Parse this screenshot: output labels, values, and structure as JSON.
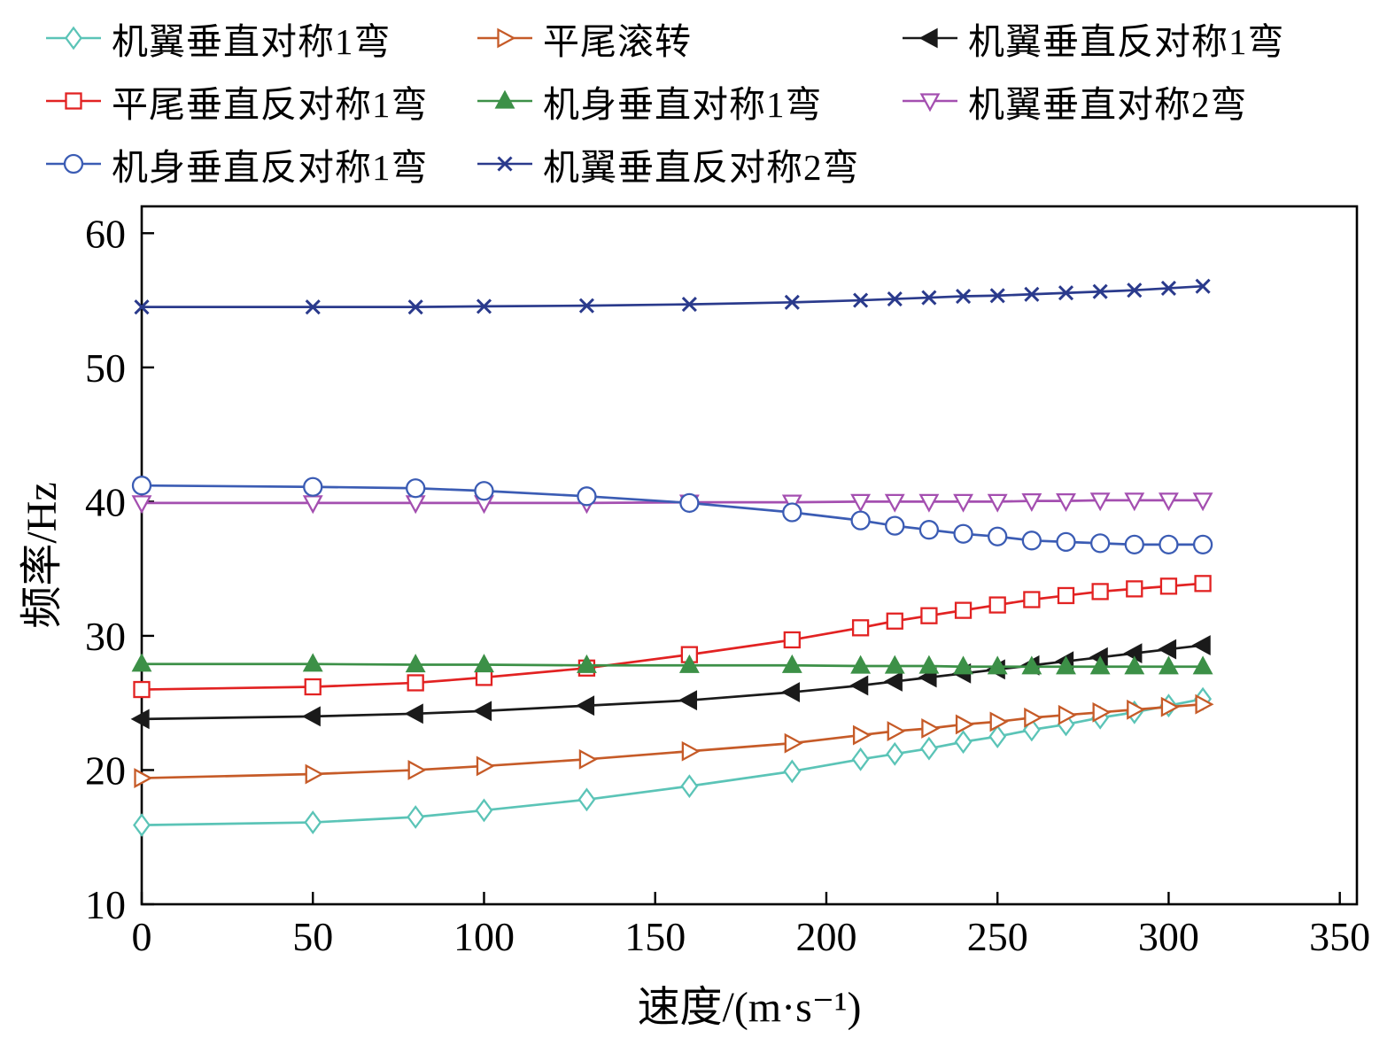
{
  "chart_data": {
    "type": "line",
    "title": "",
    "xlabel": "速度/(m·s⁻¹)",
    "ylabel": "频率/Hz",
    "xlim": [
      0,
      355
    ],
    "ylim": [
      10,
      62
    ],
    "xticks": [
      0,
      50,
      100,
      150,
      200,
      250,
      300,
      350
    ],
    "yticks": [
      10,
      20,
      30,
      40,
      50,
      60
    ],
    "grid": false,
    "legend_position": "top-outside",
    "axis_color": "#000000",
    "background": "#ffffff",
    "x": [
      0,
      50,
      80,
      100,
      130,
      160,
      190,
      210,
      220,
      230,
      240,
      250,
      260,
      270,
      280,
      290,
      300,
      310
    ],
    "series": [
      {
        "name": "机翼垂直对称1弯",
        "marker": "diamond",
        "color": "#5bc4b7",
        "fill": false,
        "values": [
          15.9,
          16.1,
          16.5,
          17.0,
          17.8,
          18.8,
          19.9,
          20.8,
          21.2,
          21.6,
          22.1,
          22.5,
          23.0,
          23.4,
          23.9,
          24.3,
          24.8,
          25.3
        ]
      },
      {
        "name": "平尾滚转",
        "marker": "triangle-right",
        "color": "#c65b28",
        "fill": false,
        "values": [
          19.4,
          19.7,
          20.0,
          20.3,
          20.8,
          21.4,
          22.0,
          22.6,
          22.9,
          23.1,
          23.4,
          23.6,
          23.9,
          24.1,
          24.3,
          24.5,
          24.7,
          24.9
        ]
      },
      {
        "name": "机翼垂直反对称1弯",
        "marker": "triangle-left",
        "color": "#1a1a1a",
        "fill": true,
        "values": [
          23.8,
          24.0,
          24.2,
          24.4,
          24.8,
          25.2,
          25.8,
          26.3,
          26.6,
          26.9,
          27.2,
          27.5,
          27.8,
          28.1,
          28.4,
          28.7,
          29.0,
          29.3
        ]
      },
      {
        "name": "平尾垂直反对称1弯",
        "marker": "square",
        "color": "#e22222",
        "fill": false,
        "values": [
          26.0,
          26.2,
          26.5,
          26.9,
          27.6,
          28.6,
          29.7,
          30.6,
          31.1,
          31.5,
          31.9,
          32.3,
          32.7,
          33.0,
          33.3,
          33.5,
          33.7,
          33.9
        ]
      },
      {
        "name": "机身垂直对称1弯",
        "marker": "triangle-up",
        "color": "#3c9047",
        "fill": true,
        "values": [
          27.9,
          27.9,
          27.85,
          27.85,
          27.8,
          27.8,
          27.8,
          27.75,
          27.75,
          27.75,
          27.7,
          27.7,
          27.7,
          27.7,
          27.7,
          27.7,
          27.7,
          27.7
        ]
      },
      {
        "name": "机翼垂直对称2弯",
        "marker": "triangle-down",
        "color": "#a44fb0",
        "fill": false,
        "values": [
          39.9,
          39.9,
          39.9,
          39.9,
          39.9,
          39.95,
          39.95,
          40.0,
          40.0,
          40.0,
          40.0,
          40.0,
          40.05,
          40.05,
          40.1,
          40.1,
          40.1,
          40.1
        ]
      },
      {
        "name": "机身垂直反对称1弯",
        "marker": "circle",
        "color": "#3b5cb4",
        "fill": false,
        "values": [
          41.2,
          41.1,
          41.0,
          40.8,
          40.4,
          39.9,
          39.2,
          38.6,
          38.2,
          37.9,
          37.6,
          37.4,
          37.1,
          37.0,
          36.9,
          36.8,
          36.8,
          36.8
        ]
      },
      {
        "name": "机翼垂直反对称2弯",
        "marker": "x",
        "color": "#2a3a8c",
        "fill": false,
        "values": [
          54.5,
          54.5,
          54.5,
          54.55,
          54.6,
          54.7,
          54.85,
          55.0,
          55.1,
          55.2,
          55.3,
          55.35,
          55.45,
          55.55,
          55.65,
          55.75,
          55.9,
          56.05
        ]
      }
    ]
  }
}
